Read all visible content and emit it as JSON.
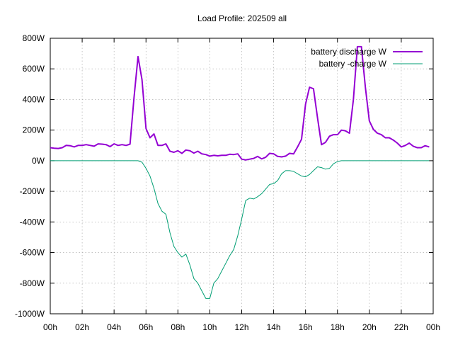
{
  "chart_data": {
    "type": "line",
    "title": "Load Profile: 202509 all",
    "xlabel": "",
    "ylabel": "",
    "x_unit": "hour of day",
    "x_ticks": [
      0,
      2,
      4,
      6,
      8,
      10,
      12,
      14,
      16,
      18,
      20,
      22,
      24
    ],
    "x_tick_labels": [
      "00h",
      "02h",
      "04h",
      "06h",
      "08h",
      "10h",
      "12h",
      "14h",
      "16h",
      "18h",
      "20h",
      "22h",
      "00h"
    ],
    "y_ticks": [
      800,
      600,
      400,
      200,
      0,
      -200,
      -400,
      -600,
      -800,
      -1000
    ],
    "y_tick_labels": [
      "800W",
      "600W",
      "400W",
      "200W",
      "0W",
      "-200W",
      "-400W",
      "-600W",
      "-800W",
      "-1000W"
    ],
    "xlim": [
      0,
      24
    ],
    "ylim": [
      -1000,
      800
    ],
    "grid": true,
    "legend_position": "top-right",
    "series": [
      {
        "name": "battery discharge W",
        "color": "#9400d3",
        "x": [
          0,
          0.25,
          0.5,
          0.75,
          1,
          1.25,
          1.5,
          1.75,
          2,
          2.25,
          2.5,
          2.75,
          3,
          3.25,
          3.5,
          3.75,
          4,
          4.25,
          4.5,
          4.75,
          5,
          5.25,
          5.5,
          5.75,
          6,
          6.25,
          6.5,
          6.75,
          7,
          7.25,
          7.5,
          7.75,
          8,
          8.25,
          8.5,
          8.75,
          9,
          9.25,
          9.5,
          9.75,
          10,
          10.25,
          10.5,
          10.75,
          11,
          11.25,
          11.5,
          11.75,
          12,
          12.25,
          12.5,
          12.75,
          13,
          13.25,
          13.5,
          13.75,
          14,
          14.25,
          14.5,
          14.75,
          15,
          15.25,
          15.5,
          15.75,
          16,
          16.25,
          16.5,
          16.75,
          17,
          17.25,
          17.5,
          17.75,
          18,
          18.25,
          18.5,
          18.75,
          19,
          19.25,
          19.5,
          19.75,
          20,
          20.25,
          20.5,
          20.75,
          21,
          21.25,
          21.5,
          21.75,
          22,
          22.25,
          22.5,
          22.75,
          23,
          23.25,
          23.5,
          23.75
        ],
        "values": [
          85,
          82,
          80,
          85,
          100,
          98,
          90,
          100,
          100,
          105,
          100,
          95,
          110,
          108,
          105,
          92,
          110,
          100,
          105,
          100,
          108,
          410,
          680,
          530,
          210,
          150,
          175,
          100,
          100,
          110,
          62,
          55,
          65,
          48,
          70,
          65,
          50,
          62,
          45,
          40,
          30,
          35,
          32,
          35,
          35,
          42,
          40,
          45,
          10,
          5,
          10,
          15,
          28,
          12,
          22,
          48,
          45,
          28,
          25,
          30,
          48,
          45,
          90,
          140,
          370,
          480,
          470,
          280,
          105,
          120,
          160,
          170,
          170,
          200,
          195,
          180,
          400,
          745,
          745,
          480,
          260,
          205,
          180,
          170,
          150,
          150,
          135,
          115,
          90,
          100,
          115,
          95,
          85,
          85,
          98,
          90
        ]
      },
      {
        "name": "battery -charge W",
        "color": "#009e73",
        "x": [
          0,
          1,
          2,
          3,
          4,
          5,
          5.5,
          5.75,
          6,
          6.25,
          6.5,
          6.75,
          7,
          7.25,
          7.5,
          7.75,
          8,
          8.25,
          8.5,
          8.75,
          9,
          9.25,
          9.5,
          9.75,
          10,
          10.25,
          10.5,
          10.75,
          11,
          11.25,
          11.5,
          11.75,
          12,
          12.25,
          12.5,
          12.75,
          13,
          13.25,
          13.5,
          13.75,
          14,
          14.25,
          14.5,
          14.75,
          15,
          15.25,
          15.5,
          15.75,
          16,
          16.25,
          16.5,
          16.75,
          17,
          17.25,
          17.5,
          17.75,
          18,
          18.25,
          18.5,
          19,
          20,
          21,
          22,
          23,
          23.75
        ],
        "values": [
          0,
          0,
          0,
          0,
          0,
          0,
          0,
          -10,
          -50,
          -100,
          -180,
          -280,
          -330,
          -350,
          -470,
          -560,
          -600,
          -630,
          -610,
          -680,
          -770,
          -800,
          -850,
          -900,
          -900,
          -800,
          -770,
          -720,
          -670,
          -620,
          -580,
          -490,
          -380,
          -260,
          -245,
          -250,
          -235,
          -215,
          -185,
          -155,
          -150,
          -130,
          -85,
          -65,
          -65,
          -70,
          -85,
          -100,
          -105,
          -90,
          -65,
          -40,
          -45,
          -55,
          -50,
          -20,
          -5,
          0,
          0,
          0,
          0,
          0,
          0,
          0,
          0
        ]
      }
    ]
  }
}
